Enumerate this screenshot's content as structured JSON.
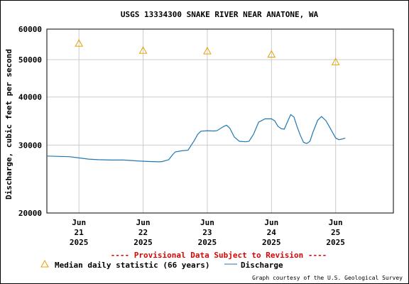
{
  "chart_data": {
    "type": "line",
    "title": "USGS 13334300 SNAKE RIVER NEAR ANATONE, WA",
    "ylabel": "Discharge, cubic feet per second",
    "y_scale": "log",
    "ylim": [
      20000,
      60000
    ],
    "y_ticks": [
      {
        "value": 20000,
        "label": "20000"
      },
      {
        "value": 30000,
        "label": "30000"
      },
      {
        "value": 40000,
        "label": "40000"
      },
      {
        "value": 50000,
        "label": "50000"
      },
      {
        "value": 60000,
        "label": "60000"
      }
    ],
    "xlim": [
      20.5,
      25.9
    ],
    "x_ticks": [
      {
        "value": 21,
        "line1": "Jun",
        "line2": "21",
        "line3": "2025"
      },
      {
        "value": 22,
        "line1": "Jun",
        "line2": "22",
        "line3": "2025"
      },
      {
        "value": 23,
        "line1": "Jun",
        "line2": "23",
        "line3": "2025"
      },
      {
        "value": 24,
        "line1": "Jun",
        "line2": "24",
        "line3": "2025"
      },
      {
        "value": 25,
        "line1": "Jun",
        "line2": "25",
        "line3": "2025"
      }
    ],
    "grid": true,
    "series": [
      {
        "name": "Discharge",
        "color": "#1f77b4",
        "points": [
          [
            20.5,
            28100
          ],
          [
            20.7,
            28050
          ],
          [
            20.85,
            28000
          ],
          [
            21.0,
            27800
          ],
          [
            21.15,
            27600
          ],
          [
            21.3,
            27500
          ],
          [
            21.5,
            27450
          ],
          [
            21.7,
            27450
          ],
          [
            21.9,
            27300
          ],
          [
            22.1,
            27200
          ],
          [
            22.25,
            27150
          ],
          [
            22.3,
            27200
          ],
          [
            22.4,
            27500
          ],
          [
            22.45,
            28200
          ],
          [
            22.5,
            28800
          ],
          [
            22.6,
            29000
          ],
          [
            22.7,
            29100
          ],
          [
            22.8,
            30900
          ],
          [
            22.85,
            32000
          ],
          [
            22.9,
            32600
          ],
          [
            23.0,
            32700
          ],
          [
            23.1,
            32650
          ],
          [
            23.15,
            32700
          ],
          [
            23.25,
            33500
          ],
          [
            23.3,
            33800
          ],
          [
            23.35,
            33200
          ],
          [
            23.42,
            31500
          ],
          [
            23.5,
            30700
          ],
          [
            23.6,
            30600
          ],
          [
            23.65,
            30700
          ],
          [
            23.72,
            32000
          ],
          [
            23.8,
            34400
          ],
          [
            23.9,
            35100
          ],
          [
            24.0,
            35100
          ],
          [
            24.05,
            34700
          ],
          [
            24.1,
            33600
          ],
          [
            24.15,
            33100
          ],
          [
            24.2,
            33000
          ],
          [
            24.25,
            34500
          ],
          [
            24.3,
            36000
          ],
          [
            24.35,
            35500
          ],
          [
            24.4,
            33500
          ],
          [
            24.45,
            31800
          ],
          [
            24.5,
            30500
          ],
          [
            24.55,
            30300
          ],
          [
            24.6,
            30700
          ],
          [
            24.65,
            32500
          ],
          [
            24.72,
            34800
          ],
          [
            24.78,
            35600
          ],
          [
            24.85,
            34700
          ],
          [
            24.92,
            33100
          ],
          [
            25.0,
            31300
          ],
          [
            25.05,
            31000
          ],
          [
            25.1,
            31100
          ],
          [
            25.15,
            31300
          ]
        ]
      },
      {
        "name": "Median daily statistic (66 years)",
        "color": "#e8a000",
        "marker": "triangle",
        "points": [
          [
            21.0,
            55100
          ],
          [
            22.0,
            52800
          ],
          [
            23.0,
            52600
          ],
          [
            24.0,
            51600
          ],
          [
            25.0,
            49300
          ]
        ]
      }
    ]
  },
  "provisional_text": "---- Provisional Data Subject to Revision ----",
  "legend": {
    "median_label": "Median daily statistic (66 years)",
    "discharge_label": "Discharge"
  },
  "credit": "Graph courtesy of the U.S. Geological Survey"
}
